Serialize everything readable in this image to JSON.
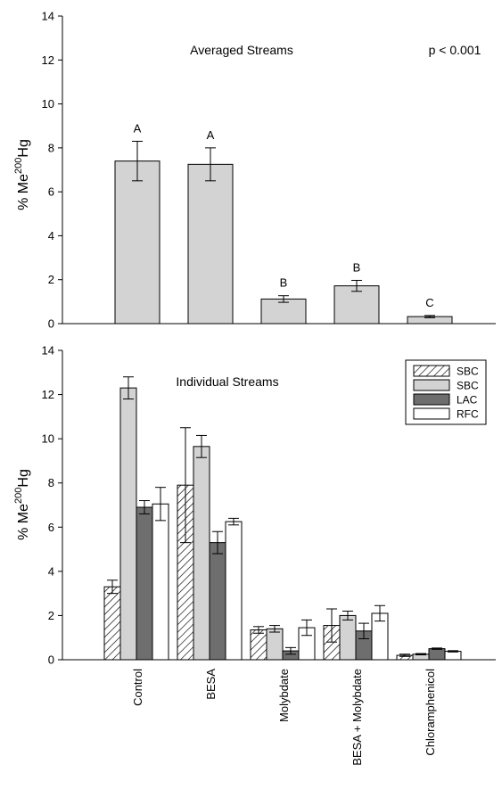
{
  "chart_data": [
    {
      "type": "bar",
      "title": "Averaged Streams",
      "annotation": "p < 0.001",
      "ylabel": "% Me200Hg",
      "ylabel_parts": {
        "prefix": "% Me",
        "sup": "200",
        "suffix": "Hg"
      },
      "ylim": [
        0,
        14
      ],
      "yticks": [
        "0",
        "2",
        "4",
        "6",
        "8",
        "10",
        "12",
        "14"
      ],
      "categories": [
        "Control",
        "BESA",
        "Molybdate",
        "BESA + Molybdate",
        "Chloramphenicol"
      ],
      "values": [
        7.4,
        7.25,
        1.12,
        1.72,
        0.32
      ],
      "errors": [
        0.9,
        0.75,
        0.15,
        0.25,
        0.05
      ],
      "significance_letters": [
        "A",
        "A",
        "B",
        "B",
        "C"
      ],
      "bar_color": "#d3d3d3"
    },
    {
      "type": "bar",
      "title": "Individual Streams",
      "ylabel": "% Me200Hg",
      "ylabel_parts": {
        "prefix": "% Me",
        "sup": "200",
        "suffix": "Hg"
      },
      "ylim": [
        0,
        14
      ],
      "yticks": [
        "0",
        "2",
        "4",
        "6",
        "8",
        "10",
        "12",
        "14"
      ],
      "categories": [
        "Control",
        "BESA",
        "Molybdate",
        "BESA + Molybdate",
        "Chloramphenicol"
      ],
      "legend_position": "top-right",
      "series": [
        {
          "name": "SBC",
          "fill": "hatch",
          "values": [
            3.3,
            7.9,
            1.35,
            1.55,
            0.2
          ],
          "errors": [
            0.3,
            2.6,
            0.15,
            0.75,
            0.05
          ]
        },
        {
          "name": "SBC",
          "fill": "#d3d3d3",
          "values": [
            12.3,
            9.65,
            1.4,
            2.0,
            0.25
          ],
          "errors": [
            0.5,
            0.5,
            0.15,
            0.2,
            0.03
          ]
        },
        {
          "name": "LAC",
          "fill": "#6e6e6e",
          "values": [
            6.9,
            5.3,
            0.4,
            1.3,
            0.5
          ],
          "errors": [
            0.3,
            0.5,
            0.15,
            0.35,
            0.03
          ]
        },
        {
          "name": "RFC",
          "fill": "#ffffff",
          "values": [
            7.05,
            6.25,
            1.45,
            2.1,
            0.38
          ],
          "errors": [
            0.75,
            0.15,
            0.35,
            0.35,
            0.03
          ]
        }
      ]
    }
  ]
}
